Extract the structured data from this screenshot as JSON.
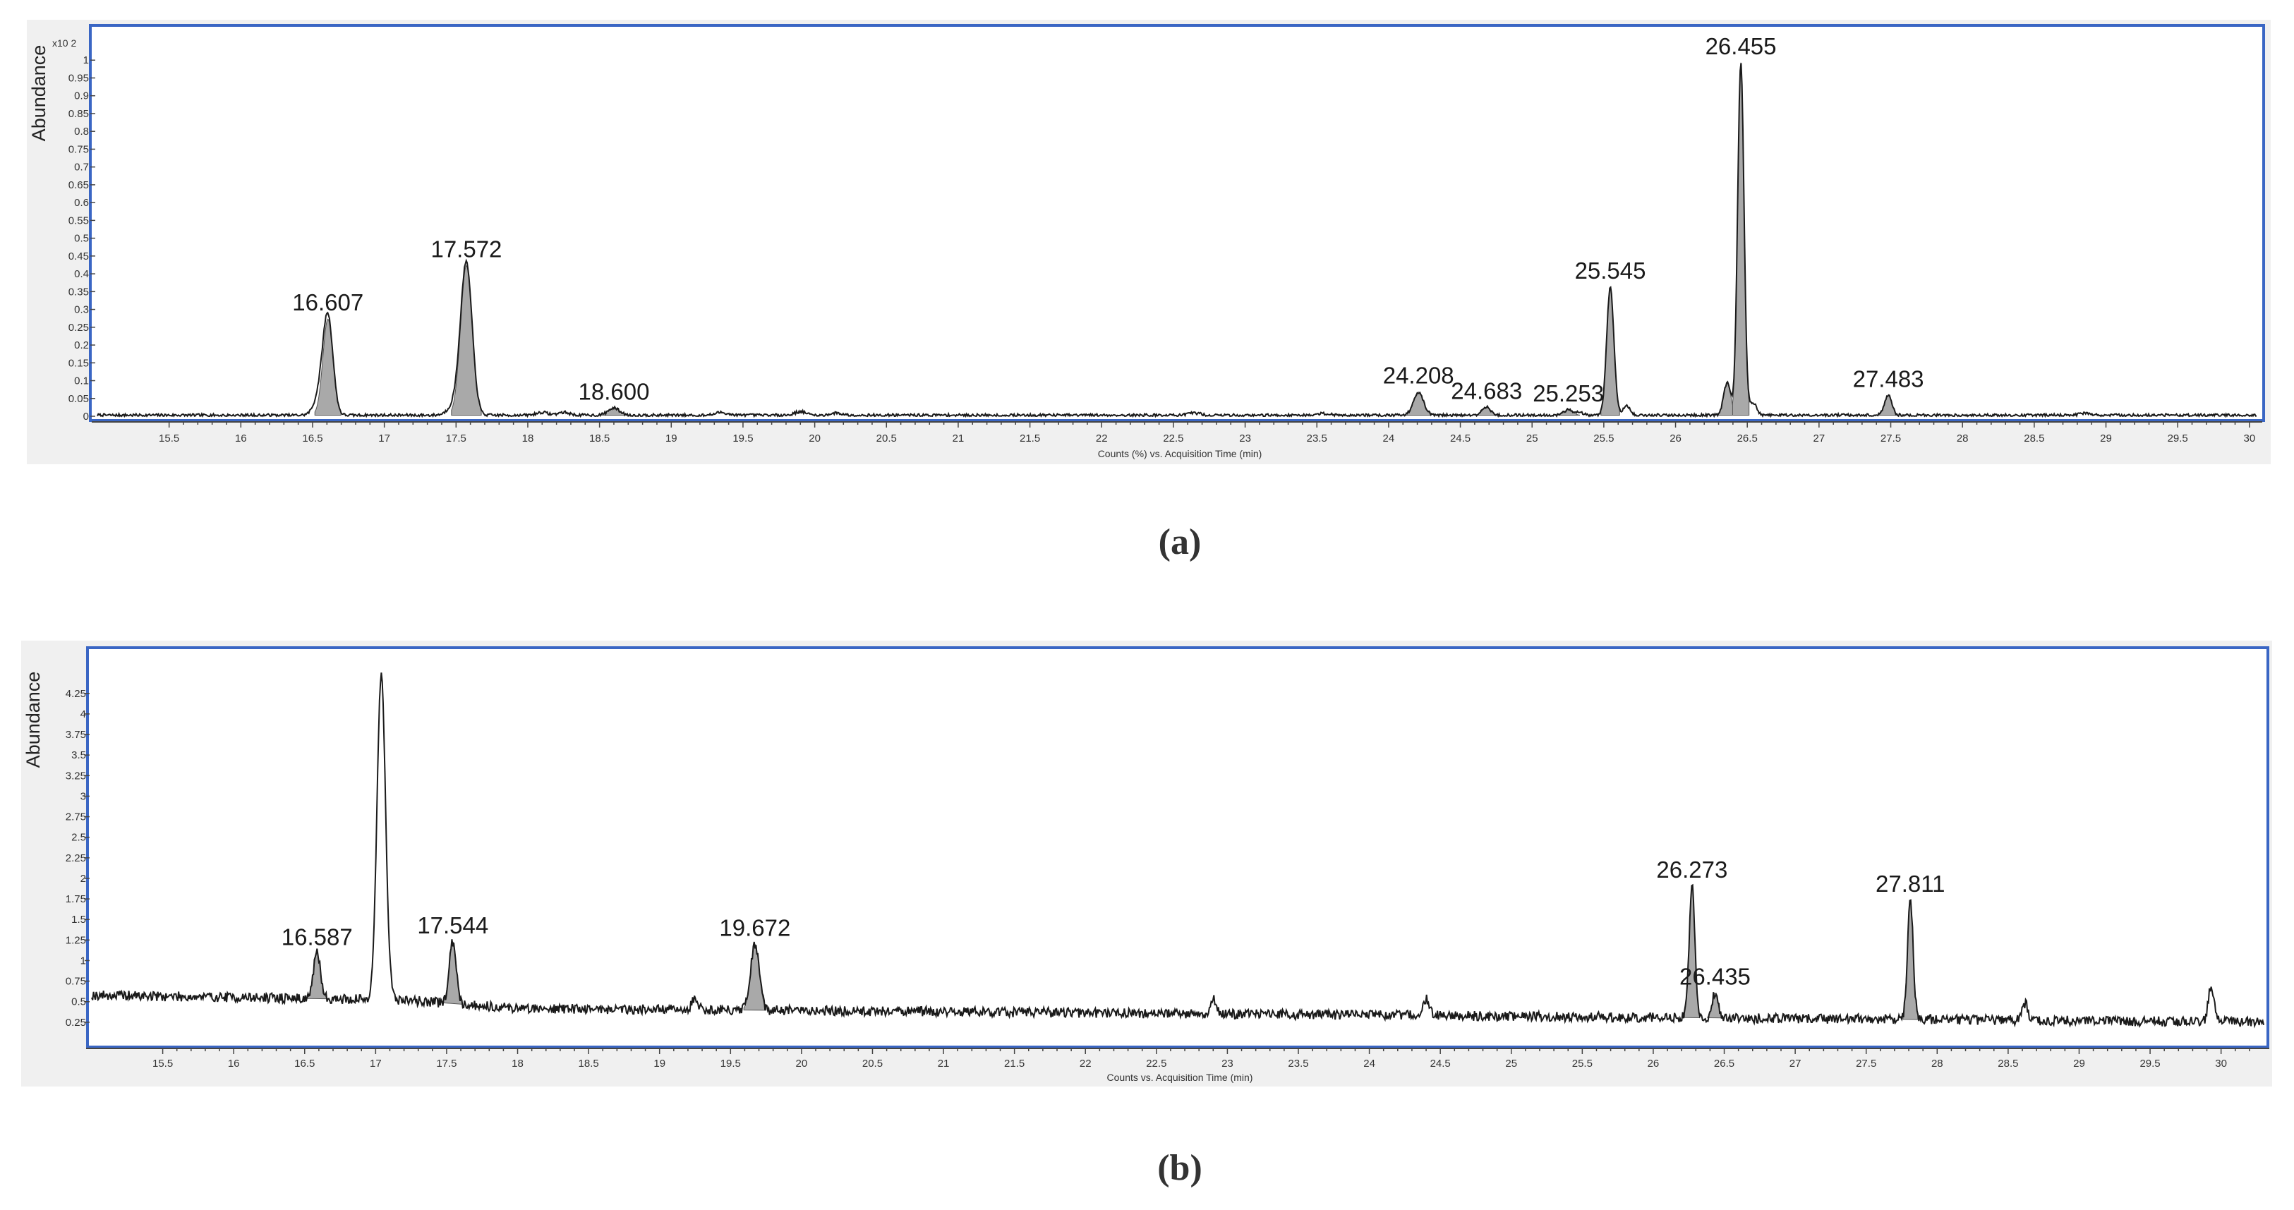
{
  "chart_data": [
    {
      "type": "line",
      "panel_caption": "(a)",
      "ylabel": "Abundance",
      "y_multiplier": "x10 2",
      "xlabel": "Counts (%) vs. Acquisition Time (min)",
      "xlim": [
        15.0,
        30.05
      ],
      "ylim": [
        0,
        1.05
      ],
      "x_ticks": [
        "15.5",
        "16",
        "16.5",
        "17",
        "17.5",
        "18",
        "18.5",
        "19",
        "19.5",
        "20",
        "20.5",
        "21",
        "21.5",
        "22",
        "22.5",
        "23",
        "23.5",
        "24",
        "24.5",
        "25",
        "25.5",
        "26",
        "26.5",
        "27",
        "27.5",
        "28",
        "28.5",
        "29",
        "29.5",
        "30"
      ],
      "y_ticks": [
        "0",
        "0.05",
        "0.1",
        "0.15",
        "0.2",
        "0.25",
        "0.3",
        "0.35",
        "0.4",
        "0.45",
        "0.5",
        "0.55",
        "0.6",
        "0.65",
        "0.7",
        "0.75",
        "0.8",
        "0.85",
        "0.9",
        "0.95",
        "1"
      ],
      "grid": false,
      "noise": 0.004,
      "baseline": 0.003,
      "peaks": [
        {
          "x": 16.55,
          "height": 0.05,
          "width": 0.04
        },
        {
          "x": 16.607,
          "height": 0.27,
          "width": 0.035,
          "label": "16.607",
          "filled": true
        },
        {
          "x": 17.5,
          "height": 0.03,
          "width": 0.05
        },
        {
          "x": 17.572,
          "height": 0.42,
          "width": 0.04,
          "label": "17.572",
          "filled": true
        },
        {
          "x": 18.1,
          "height": 0.008,
          "width": 0.04
        },
        {
          "x": 18.25,
          "height": 0.008,
          "width": 0.04
        },
        {
          "x": 18.6,
          "height": 0.02,
          "width": 0.04,
          "label": "18.600",
          "filled": true
        },
        {
          "x": 19.35,
          "height": 0.008,
          "width": 0.04
        },
        {
          "x": 19.9,
          "height": 0.01,
          "width": 0.04
        },
        {
          "x": 20.15,
          "height": 0.006,
          "width": 0.04
        },
        {
          "x": 22.65,
          "height": 0.006,
          "width": 0.04
        },
        {
          "x": 23.55,
          "height": 0.005,
          "width": 0.04
        },
        {
          "x": 24.208,
          "height": 0.065,
          "width": 0.035,
          "label": "24.208",
          "filled": true
        },
        {
          "x": 24.683,
          "height": 0.022,
          "width": 0.03,
          "label": "24.683",
          "filled": true
        },
        {
          "x": 25.253,
          "height": 0.015,
          "width": 0.03,
          "label": "25.253",
          "filled": true
        },
        {
          "x": 25.33,
          "height": 0.01,
          "width": 0.025
        },
        {
          "x": 25.545,
          "height": 0.36,
          "width": 0.025,
          "label": "25.545",
          "filled": true
        },
        {
          "x": 25.66,
          "height": 0.025,
          "width": 0.025
        },
        {
          "x": 26.36,
          "height": 0.09,
          "width": 0.025,
          "filled": true
        },
        {
          "x": 26.455,
          "height": 0.99,
          "width": 0.022,
          "label": "26.455",
          "filled": true
        },
        {
          "x": 26.54,
          "height": 0.035,
          "width": 0.025
        },
        {
          "x": 27.483,
          "height": 0.055,
          "width": 0.025,
          "label": "27.483",
          "filled": true
        },
        {
          "x": 28.85,
          "height": 0.005,
          "width": 0.04
        }
      ]
    },
    {
      "type": "line",
      "panel_caption": "(b)",
      "ylabel": "Abundance",
      "xlabel": "Counts vs. Acquisition Time (min)",
      "xlim": [
        15.0,
        30.3
      ],
      "ylim": [
        0,
        4.6
      ],
      "x_ticks": [
        "15.5",
        "16",
        "16.5",
        "17",
        "17.5",
        "18",
        "18.5",
        "19",
        "19.5",
        "20",
        "20.5",
        "21",
        "21.5",
        "22",
        "22.5",
        "23",
        "23.5",
        "24",
        "24.5",
        "25",
        "25.5",
        "26",
        "26.5",
        "27",
        "27.5",
        "28",
        "28.5",
        "29",
        "29.5",
        "30"
      ],
      "y_ticks": [
        "0.25",
        "0.5",
        "0.75",
        "1",
        "1.25",
        "1.5",
        "1.75",
        "2",
        "2.25",
        "2.5",
        "2.75",
        "3",
        "3.25",
        "3.5",
        "3.75",
        "4",
        "4.25"
      ],
      "grid": false,
      "noise": 0.06,
      "baseline": {
        "x": [
          15.0,
          17.2,
          18.0,
          30.3
        ],
        "y": [
          0.58,
          0.52,
          0.42,
          0.25
        ]
      },
      "peaks": [
        {
          "x": 16.587,
          "height": 0.55,
          "width": 0.025,
          "label": "16.587",
          "filled": true
        },
        {
          "x": 17.04,
          "height": 3.95,
          "width": 0.03
        },
        {
          "x": 17.544,
          "height": 0.75,
          "width": 0.025,
          "label": "17.544",
          "filled": true
        },
        {
          "x": 19.25,
          "height": 0.15,
          "width": 0.02
        },
        {
          "x": 19.672,
          "height": 0.8,
          "width": 0.03,
          "label": "19.672",
          "filled": true
        },
        {
          "x": 22.9,
          "height": 0.18,
          "width": 0.02
        },
        {
          "x": 24.4,
          "height": 0.2,
          "width": 0.02
        },
        {
          "x": 26.273,
          "height": 1.6,
          "width": 0.02,
          "label": "26.273",
          "filled": true
        },
        {
          "x": 26.435,
          "height": 0.3,
          "width": 0.02,
          "label": "26.435",
          "filled": true
        },
        {
          "x": 27.811,
          "height": 1.45,
          "width": 0.02,
          "label": "27.811",
          "filled": true
        },
        {
          "x": 28.62,
          "height": 0.2,
          "width": 0.02
        },
        {
          "x": 29.93,
          "height": 0.45,
          "width": 0.02
        }
      ]
    }
  ]
}
